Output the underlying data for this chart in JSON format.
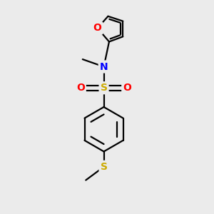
{
  "bg_color": "#ebebeb",
  "atom_colors": {
    "O": "#ff0000",
    "N": "#0000ff",
    "S_sulfonamide": "#ccaa00",
    "S_sulfide": "#ccaa00",
    "C": "#000000"
  },
  "bond_color": "#000000",
  "bond_width": 1.6,
  "font_size_atoms": 10,
  "figsize": [
    3.0,
    3.0
  ],
  "dpi": 100
}
